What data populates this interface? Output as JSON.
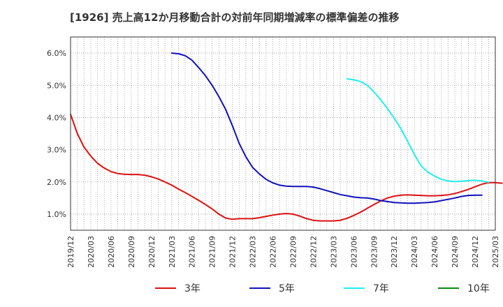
{
  "chart_data": {
    "type": "line",
    "title": "[1926]  売上高12か月移動合計の対前年同期増減率の標準偏差の推移",
    "xlabel": "",
    "ylabel": "",
    "ylim": [
      0.5,
      6.5
    ],
    "yticks": [
      "1.0%",
      "2.0%",
      "3.0%",
      "4.0%",
      "5.0%",
      "6.0%"
    ],
    "ytick_values": [
      1,
      2,
      3,
      4,
      5,
      6
    ],
    "xticks": [
      "2019/12",
      "2020/03",
      "2020/06",
      "2020/09",
      "2020/12",
      "2021/03",
      "2021/06",
      "2021/09",
      "2021/12",
      "2022/03",
      "2022/06",
      "2022/09",
      "2022/12",
      "2023/03",
      "2023/06",
      "2023/09",
      "2023/12",
      "2024/03",
      "2024/06",
      "2024/09",
      "2024/12",
      "2025/03"
    ],
    "grid": true,
    "legend_position": "bottom",
    "series": [
      {
        "name": "3年",
        "color": "#dd1111",
        "start_index": 0,
        "values": [
          4.1,
          3.5,
          3.08,
          2.8,
          2.58,
          2.43,
          2.32,
          2.26,
          2.24,
          2.23,
          2.23,
          2.21,
          2.16,
          2.09,
          2.0,
          1.9,
          1.78,
          1.67,
          1.55,
          1.43,
          1.3,
          1.16,
          1.0,
          0.88,
          0.84,
          0.86,
          0.86,
          0.86,
          0.89,
          0.93,
          0.97,
          1.0,
          1.02,
          1.0,
          0.94,
          0.86,
          0.81,
          0.79,
          0.79,
          0.79,
          0.81,
          0.87,
          0.96,
          1.06,
          1.18,
          1.3,
          1.41,
          1.5,
          1.56,
          1.59,
          1.6,
          1.59,
          1.58,
          1.57,
          1.57,
          1.58,
          1.6,
          1.64,
          1.7,
          1.77,
          1.85,
          1.93,
          1.98,
          1.98,
          1.96
        ]
      },
      {
        "name": "5年",
        "color": "#1111bb",
        "start_index": 15,
        "values": [
          6.0,
          5.98,
          5.92,
          5.78,
          5.55,
          5.3,
          5.0,
          4.65,
          4.25,
          3.75,
          3.2,
          2.78,
          2.45,
          2.25,
          2.08,
          1.97,
          1.9,
          1.87,
          1.86,
          1.86,
          1.86,
          1.84,
          1.79,
          1.73,
          1.67,
          1.61,
          1.57,
          1.53,
          1.51,
          1.5,
          1.47,
          1.42,
          1.39,
          1.36,
          1.35,
          1.34,
          1.34,
          1.35,
          1.36,
          1.38,
          1.42,
          1.46,
          1.5,
          1.55,
          1.58,
          1.59,
          1.59
        ]
      },
      {
        "name": "7年",
        "color": "#22eeee",
        "start_index": 41,
        "values": [
          5.2,
          5.17,
          5.12,
          5.0,
          4.8,
          4.55,
          4.28,
          3.98,
          3.65,
          3.26,
          2.85,
          2.5,
          2.3,
          2.18,
          2.08,
          2.03,
          2.01,
          2.02,
          2.04,
          2.05,
          2.03,
          1.99
        ]
      },
      {
        "name": "10年",
        "color": "#118811",
        "start_index": 0,
        "values": []
      }
    ]
  }
}
